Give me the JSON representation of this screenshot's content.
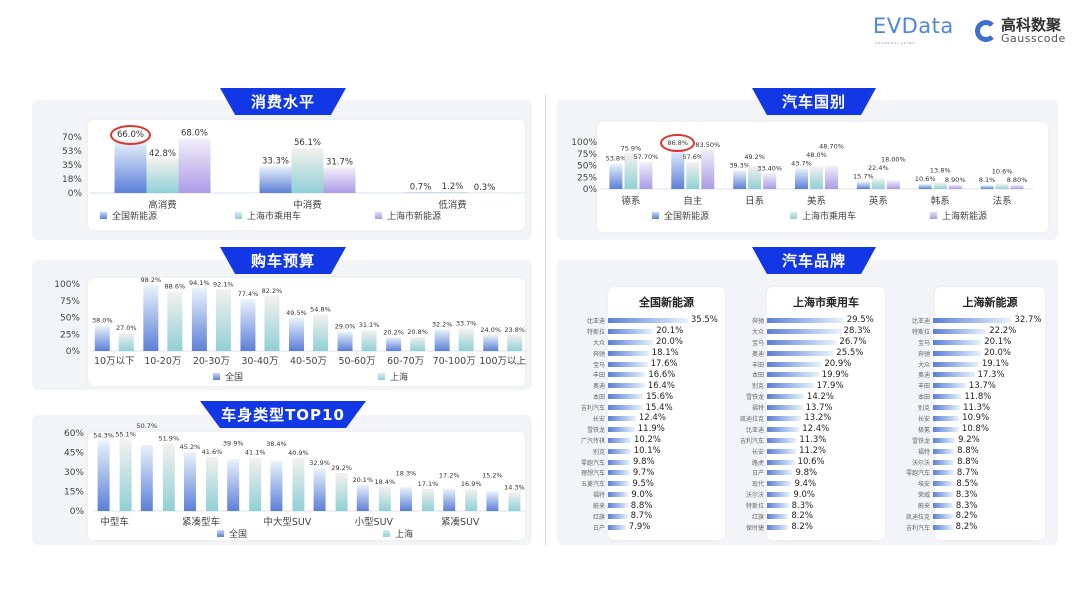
{
  "logos": {
    "evdata": "EVData",
    "evdata_sub": "SHANGHAI CHINA",
    "gauss_cn": "高科数聚",
    "gauss_en": "Gausscode"
  },
  "colors": {
    "banner": "#1238e6",
    "series1": "#5b7fd8",
    "series2": "#8fd0d6",
    "series3": "#b3a3e6",
    "highlight_ring": "#e0342a"
  },
  "sections": {
    "consumption": "消费水平",
    "budget": "购车预算",
    "body_type": "车身类型TOP10",
    "country": "汽车国别",
    "brand": "汽车品牌"
  },
  "chart_data": [
    {
      "id": "consumption",
      "type": "bar",
      "ylim": [
        0,
        70
      ],
      "ytick_labels": [
        "0%",
        "18%",
        "35%",
        "53%",
        "70%"
      ],
      "yticks": [
        0,
        17.5,
        35,
        52.5,
        70
      ],
      "categories": [
        "高消费",
        "中消费",
        "低消费"
      ],
      "series": [
        {
          "name": "全国新能源",
          "values": [
            66.0,
            33.3,
            0.7
          ],
          "labels": [
            "66.0%",
            "33.3%",
            "0.7%"
          ]
        },
        {
          "name": "上海市乘用车",
          "values": [
            42.8,
            56.1,
            1.2
          ],
          "labels": [
            "42.8%",
            "56.1%",
            "1.2%"
          ]
        },
        {
          "name": "上海市新能源",
          "values": [
            68.0,
            31.7,
            0.3
          ],
          "labels": [
            "68.0%",
            "31.7%",
            "0.3%"
          ]
        }
      ],
      "legend": "bottom",
      "highlight": "66.0%"
    },
    {
      "id": "budget",
      "type": "bar",
      "ylim": [
        0,
        100
      ],
      "ytick_labels": [
        "0%",
        "25%",
        "50%",
        "75%",
        "100%"
      ],
      "yticks": [
        0,
        25,
        50,
        75,
        100
      ],
      "categories": [
        "10万以下",
        "10-20万",
        "20-30万",
        "30-40万",
        "40-50万",
        "50-60万",
        "60-70万",
        "70-100万",
        "100万以上"
      ],
      "series": [
        {
          "name": "全国",
          "values": [
            38.0,
            98.2,
            94.1,
            77.4,
            49.5,
            29.0,
            20.2,
            32.2,
            24.0
          ],
          "labels": [
            "38.0%",
            "98.2%",
            "94.1%",
            "77.4%",
            "49.5%",
            "29.0%",
            "20.2%",
            "32.2%",
            "24.0%"
          ]
        },
        {
          "name": "上海",
          "values": [
            27.0,
            88.6,
            92.1,
            82.2,
            54.8,
            31.1,
            20.8,
            33.7,
            23.8
          ],
          "labels": [
            "27.0%",
            "88.6%",
            "92.1%",
            "82.2%",
            "54.8%",
            "31.1%",
            "20.8%",
            "33.7%",
            "23.8%"
          ]
        }
      ],
      "legend": "bottom"
    },
    {
      "id": "body_type",
      "type": "bar",
      "ylim": [
        0,
        60
      ],
      "ytick_labels": [
        "0%",
        "15%",
        "30%",
        "45%",
        "60%"
      ],
      "yticks": [
        0,
        15,
        30,
        45,
        60
      ],
      "categories": [
        "中型车",
        "",
        "紧凑型车",
        "",
        "中大型SUV",
        "",
        "小型SUV",
        "",
        "紧凑SUV",
        ""
      ],
      "series": [
        {
          "name": "全国",
          "values": [
            54.3,
            50.7,
            45.2,
            39.9,
            38.4,
            32.9,
            20.1,
            18.3,
            17.2,
            15.2
          ],
          "labels": [
            "54.3%",
            "50.7%",
            "45.2%",
            "39.9%",
            "38.4%",
            "32.9%",
            "20.1%",
            "18.3%",
            "17.2%",
            "15.2%"
          ]
        },
        {
          "name": "上海",
          "values": [
            55.1,
            51.9,
            41.6,
            41.1,
            40.9,
            29.2,
            18.4,
            17.1,
            16.9,
            14.3
          ],
          "labels": [
            "55.1%",
            "51.9%",
            "41.6%",
            "41.1%",
            "40.9%",
            "29.2%",
            "18.4%",
            "17.1%",
            "16.9%",
            "14.3%"
          ]
        }
      ],
      "legend": "bottom"
    },
    {
      "id": "country",
      "type": "bar",
      "ylim": [
        0,
        100
      ],
      "ytick_labels": [
        "0%",
        "25%",
        "50%",
        "75%",
        "100%"
      ],
      "yticks": [
        0,
        25,
        50,
        75,
        100
      ],
      "categories": [
        "德系",
        "自主",
        "日系",
        "美系",
        "英系",
        "韩系",
        "法系"
      ],
      "series": [
        {
          "name": "全国新能源",
          "values": [
            53.8,
            86.8,
            39.3,
            43.7,
            15.7,
            10.6,
            8.1
          ],
          "labels": [
            "53.8%",
            "86.8%",
            "39.3%",
            "43.7%",
            "15.7%",
            "10.6%",
            "8.1%"
          ]
        },
        {
          "name": "上海市乘用车",
          "values": [
            75.9,
            57.6,
            49.2,
            48.0,
            22.4,
            13.8,
            10.6
          ],
          "labels": [
            "75.9%",
            "57.6%",
            "49.2%",
            "48.0%",
            "22.4%",
            "13.8%",
            "10.6%"
          ]
        },
        {
          "name": "上海新能源",
          "values": [
            57.7,
            83.5,
            33.4,
            48.7,
            18.0,
            8.9,
            8.8
          ],
          "labels": [
            "57.70%",
            "83.50%",
            "33.40%",
            "48.70%",
            "18.00%",
            "8.90%",
            "8.80%"
          ]
        }
      ],
      "legend": "bottom",
      "highlight": "86.8%"
    },
    {
      "id": "brands",
      "type": "bar",
      "orientation": "horizontal",
      "panels": [
        {
          "title": "全国新能源",
          "names": [
            "比亚迪",
            "特斯拉",
            "大众",
            "奔驰",
            "宝马",
            "丰田",
            "奥迪",
            "本田",
            "吉利汽车",
            "长安",
            "雪铁龙",
            "广汽传祺",
            "别克",
            "零跑汽车",
            "理想汽车",
            "五菱汽车",
            "福特",
            "蔚来",
            "红旗",
            "日产"
          ],
          "values": [
            35.5,
            20.1,
            20.0,
            18.1,
            17.6,
            16.6,
            16.4,
            15.6,
            15.4,
            12.4,
            11.9,
            10.2,
            10.1,
            9.8,
            9.7,
            9.5,
            9.0,
            8.8,
            8.7,
            7.9
          ],
          "labels": [
            "35.5%",
            "20.1%",
            "20.0%",
            "18.1%",
            "17.6%",
            "16.6%",
            "16.4%",
            "15.6%",
            "15.4%",
            "12.4%",
            "11.9%",
            "10.2%",
            "10.1%",
            "9.8%",
            "9.7%",
            "9.5%",
            "9.0%",
            "8.8%",
            "8.7%",
            "7.9%"
          ]
        },
        {
          "title": "上海市乘用车",
          "names": [
            "奔驰",
            "大众",
            "宝马",
            "奥迪",
            "丰田",
            "本田",
            "别克",
            "雪铁龙",
            "福特",
            "凯迪拉克",
            "比亚迪",
            "吉利汽车",
            "长安",
            "路虎",
            "日产",
            "现代",
            "沃尔沃",
            "特斯拉",
            "红旗",
            "保时捷"
          ],
          "values": [
            29.5,
            28.3,
            26.7,
            25.5,
            20.9,
            19.9,
            17.9,
            14.2,
            13.7,
            13.2,
            12.4,
            11.3,
            11.2,
            10.6,
            9.8,
            9.4,
            9.0,
            8.3,
            8.2,
            8.2
          ],
          "labels": [
            "29.5%",
            "28.3%",
            "26.7%",
            "25.5%",
            "20.9%",
            "19.9%",
            "17.9%",
            "14.2%",
            "13.7%",
            "13.2%",
            "12.4%",
            "11.3%",
            "11.2%",
            "10.6%",
            "9.8%",
            "9.4%",
            "9.0%",
            "8.3%",
            "8.2%",
            "8.2%"
          ]
        },
        {
          "title": "上海新能源",
          "names": [
            "比亚迪",
            "特斯拉",
            "宝马",
            "奔驰",
            "大众",
            "奥迪",
            "丰田",
            "本田",
            "别克",
            "长安",
            "极氪",
            "雪铁龙",
            "福特",
            "沃尔沃",
            "零跑汽车",
            "埃安",
            "荣威",
            "蔚来",
            "凯迪拉克",
            "吉利汽车"
          ],
          "values": [
            32.7,
            22.2,
            20.1,
            20.0,
            19.1,
            17.3,
            13.7,
            11.8,
            11.3,
            10.9,
            10.8,
            9.2,
            8.8,
            8.8,
            8.7,
            8.5,
            8.3,
            8.3,
            8.2,
            8.2
          ],
          "labels": [
            "32.7%",
            "22.2%",
            "20.1%",
            "20.0%",
            "19.1%",
            "17.3%",
            "13.7%",
            "11.8%",
            "11.3%",
            "10.9%",
            "10.8%",
            "9.2%",
            "8.8%",
            "8.8%",
            "8.7%",
            "8.5%",
            "8.3%",
            "8.3%",
            "8.2%",
            "8.2%"
          ]
        }
      ]
    }
  ]
}
